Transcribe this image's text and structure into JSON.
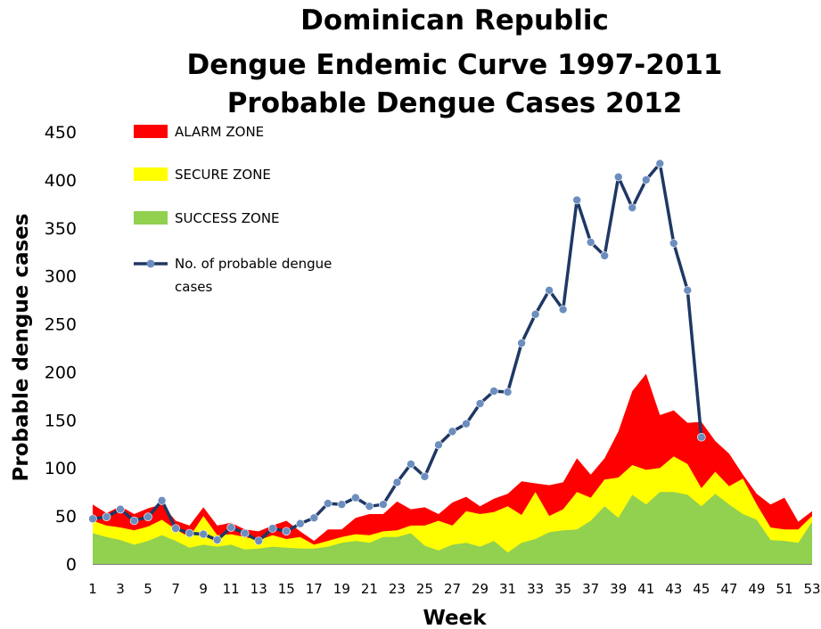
{
  "chart_data": {
    "type": "area",
    "title_lines": [
      "Dominican Republic",
      "Dengue Endemic Curve 1997-2011",
      "Probable Dengue Cases 2012"
    ],
    "xlabel": "Week",
    "ylabel": "Probable dengue cases",
    "xlim": [
      1,
      53
    ],
    "ylim": [
      0,
      450
    ],
    "y_ticks": [
      0,
      50,
      100,
      150,
      200,
      250,
      300,
      350,
      400,
      450
    ],
    "x_ticks": [
      1,
      3,
      5,
      7,
      9,
      11,
      13,
      15,
      17,
      19,
      21,
      23,
      25,
      27,
      29,
      31,
      33,
      35,
      37,
      39,
      41,
      43,
      45,
      47,
      49,
      51,
      53
    ],
    "grid": false,
    "legend_position": "top-left",
    "colors": {
      "alarm": "#ff0000",
      "secure": "#ffff00",
      "success": "#92d050",
      "line": "#1f3864",
      "marker": "#6c8ebf"
    },
    "weeks": [
      1,
      2,
      3,
      4,
      5,
      6,
      7,
      8,
      9,
      10,
      11,
      12,
      13,
      14,
      15,
      16,
      17,
      18,
      19,
      20,
      21,
      22,
      23,
      24,
      25,
      26,
      27,
      28,
      29,
      30,
      31,
      32,
      33,
      34,
      35,
      36,
      37,
      38,
      39,
      40,
      41,
      42,
      43,
      44,
      45,
      46,
      47,
      48,
      49,
      50,
      51,
      52,
      53
    ],
    "zones": [
      {
        "name": "ALARM ZONE",
        "color": "#ff0000",
        "values": [
          62,
          53,
          60,
          52,
          58,
          62,
          45,
          40,
          59,
          40,
          43,
          36,
          34,
          40,
          45,
          34,
          24,
          36,
          36,
          48,
          52,
          52,
          65,
          57,
          59,
          52,
          64,
          70,
          60,
          68,
          73,
          86,
          84,
          82,
          85,
          110,
          93,
          110,
          138,
          180,
          198,
          155,
          160,
          147,
          148,
          128,
          115,
          93,
          73,
          62,
          69,
          44,
          55
        ]
      },
      {
        "name": "SECURE ZONE",
        "color": "#ffff00",
        "values": [
          45,
          40,
          38,
          35,
          39,
          46,
          36,
          28,
          50,
          30,
          31,
          28,
          25,
          30,
          26,
          28,
          20,
          24,
          28,
          31,
          30,
          34,
          35,
          40,
          40,
          45,
          40,
          55,
          52,
          54,
          60,
          51,
          75,
          50,
          57,
          75,
          69,
          88,
          90,
          103,
          98,
          100,
          112,
          104,
          79,
          96,
          81,
          89,
          62,
          38,
          36,
          36,
          50
        ]
      },
      {
        "name": "SUCCESS ZONE",
        "color": "#92d050",
        "values": [
          32,
          28,
          25,
          20,
          24,
          30,
          24,
          17,
          20,
          18,
          20,
          15,
          16,
          18,
          17,
          16,
          16,
          18,
          22,
          24,
          22,
          28,
          28,
          32,
          19,
          14,
          20,
          22,
          18,
          24,
          12,
          22,
          26,
          33,
          35,
          36,
          45,
          60,
          48,
          72,
          62,
          75,
          75,
          72,
          60,
          73,
          62,
          52,
          46,
          25,
          24,
          22,
          44
        ]
      }
    ],
    "series": [
      {
        "name": "No. of probable dengue cases",
        "legend_lines": [
          "No. of probable dengue",
          "cases"
        ],
        "color": "#1f3864",
        "x": [
          1,
          2,
          3,
          4,
          5,
          6,
          7,
          8,
          9,
          10,
          11,
          12,
          13,
          14,
          15,
          16,
          17,
          18,
          19,
          20,
          21,
          22,
          23,
          24,
          25,
          26,
          27,
          28,
          29,
          30,
          31,
          32,
          33,
          34,
          35,
          36,
          37,
          38,
          39,
          40,
          41,
          42,
          43,
          44,
          45
        ],
        "values": [
          47,
          49,
          57,
          45,
          49,
          66,
          37,
          32,
          31,
          25,
          38,
          32,
          24,
          37,
          34,
          42,
          48,
          63,
          62,
          69,
          60,
          62,
          85,
          104,
          91,
          124,
          138,
          146,
          167,
          180,
          179,
          230,
          260,
          285,
          265,
          379,
          335,
          321,
          403,
          371,
          400,
          417,
          334,
          285,
          132
        ]
      }
    ]
  }
}
